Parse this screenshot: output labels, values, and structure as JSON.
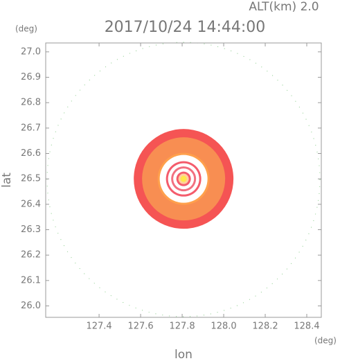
{
  "chart_data": {
    "type": "radar",
    "title": "2017/10/24 14:44:00",
    "altitude_label": "ALT(km)  2.0",
    "x_label": "lon",
    "y_label": "lat",
    "x_unit": "(deg)",
    "y_unit": "(deg)",
    "xlim": [
      127.143,
      128.47
    ],
    "ylim": [
      25.955,
      27.035
    ],
    "xticks": [
      127.4,
      127.6,
      127.8,
      {
        "value": 128,
        "label": "128.0"
      },
      128.2,
      128.4
    ],
    "yticks": [
      {
        "value": 26,
        "label": "26.0"
      },
      26.1,
      26.2,
      26.3,
      26.4,
      26.5,
      26.6,
      26.7,
      26.8,
      26.9,
      {
        "value": 27,
        "label": "27.0"
      }
    ],
    "center": [
      127.807,
      26.5
    ],
    "rings": [
      {
        "radius": 0.24,
        "color": "#f55454"
      },
      {
        "radius": 0.2,
        "color": "#f88e52"
      },
      {
        "radius": 0.125,
        "color": "#ffa04c"
      },
      {
        "radius": 0.115,
        "color": "#ffffff"
      },
      {
        "radius": 0.085,
        "color": "#f45c6c"
      },
      {
        "radius": 0.075,
        "color": "#ffffff"
      },
      {
        "radius": 0.06,
        "color": "#f27080"
      },
      {
        "radius": 0.05,
        "color": "#ffffff"
      },
      {
        "radius": 0.035,
        "color": "#f45c6c"
      },
      {
        "radius": 0.025,
        "color": "#ffd0a0"
      },
      {
        "radius": 0.015,
        "color": "#ffe84c"
      }
    ]
  }
}
